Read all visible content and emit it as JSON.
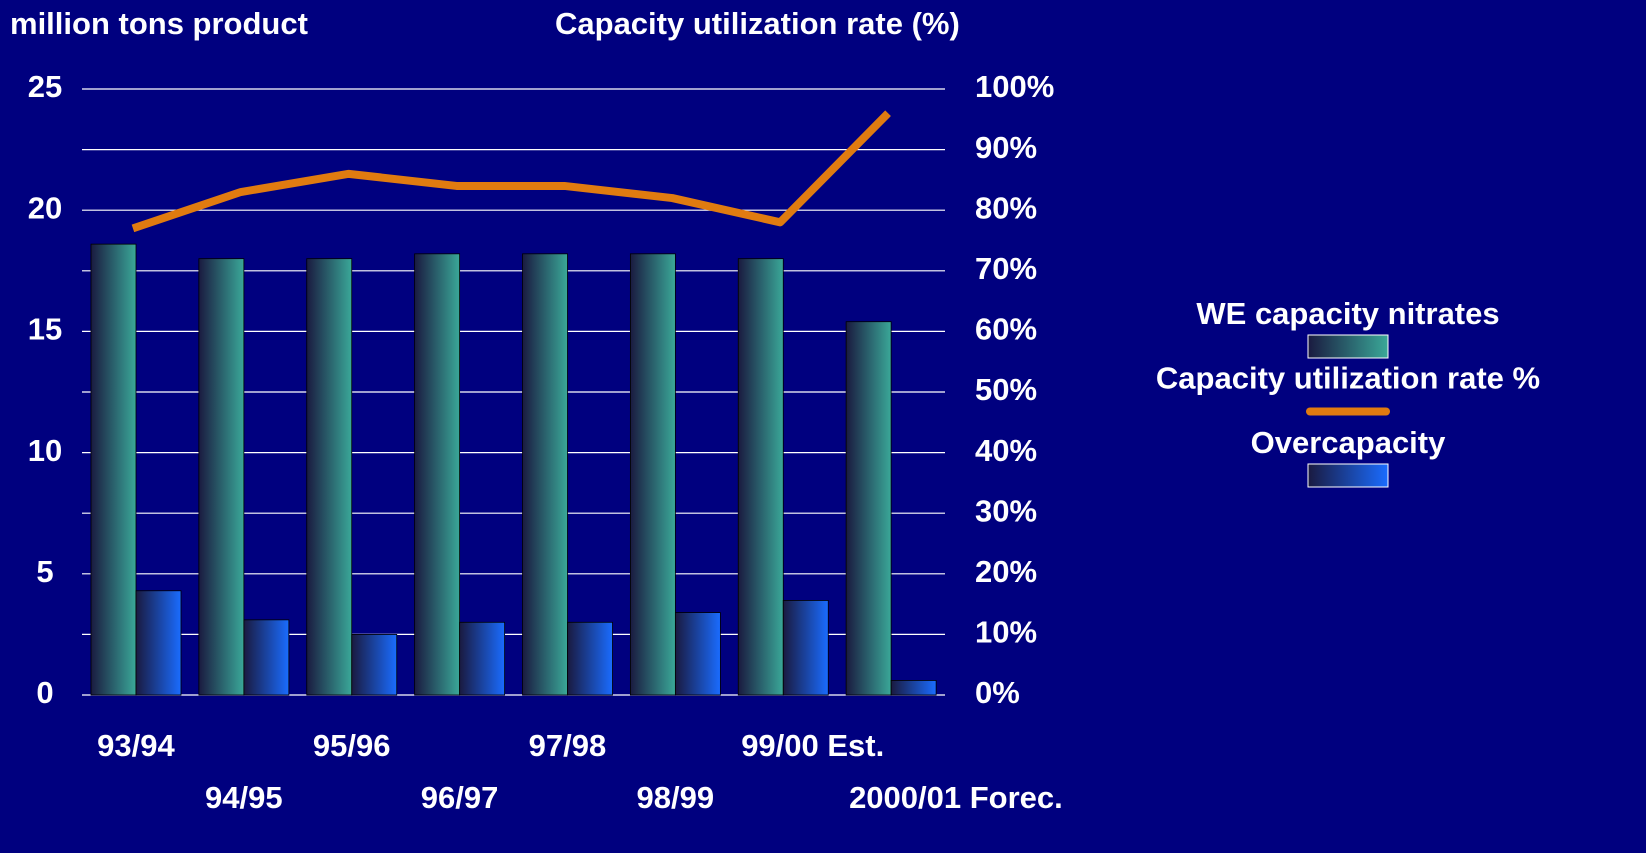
{
  "chart_data": {
    "type": "bar",
    "y_title": "million tons product",
    "y2_title": "Capacity utilization rate (%)",
    "categories": [
      "93/94",
      "94/95",
      "95/96",
      "96/97",
      "97/98",
      "98/99",
      "99/00 Est.",
      "2000/01 Forec."
    ],
    "series": [
      {
        "name": "WE capacity nitrates",
        "color": "#3aa898",
        "type": "bar",
        "values": [
          18.6,
          18.0,
          18.0,
          18.2,
          18.2,
          18.2,
          18.0,
          15.4
        ]
      },
      {
        "name": "Capacity utilization rate %",
        "color": "#e07b10",
        "type": "line",
        "axis": "y2",
        "values": [
          77,
          83,
          86,
          84,
          84,
          82,
          78,
          96
        ]
      },
      {
        "name": "Overcapacity",
        "color": "#1a6cff",
        "type": "bar",
        "values": [
          4.3,
          3.1,
          2.5,
          3.0,
          3.0,
          3.4,
          3.9,
          0.6
        ]
      }
    ],
    "ylim": [
      0,
      25
    ],
    "yticks": [
      0,
      5,
      10,
      15,
      20,
      25
    ],
    "y2lim": [
      0,
      100
    ],
    "y2ticks": [
      {
        "value": 0,
        "label": "0%"
      },
      {
        "value": 10,
        "label": "10%"
      },
      {
        "value": 20,
        "label": "20%"
      },
      {
        "value": 30,
        "label": "30%"
      },
      {
        "value": 40,
        "label": "40%"
      },
      {
        "value": 50,
        "label": "50%"
      },
      {
        "value": 60,
        "label": "60%"
      },
      {
        "value": 70,
        "label": "70%"
      },
      {
        "value": 80,
        "label": "80%"
      },
      {
        "value": 90,
        "label": "90%"
      },
      {
        "value": 100,
        "label": "100%"
      }
    ],
    "grid": true,
    "legend": "right"
  }
}
